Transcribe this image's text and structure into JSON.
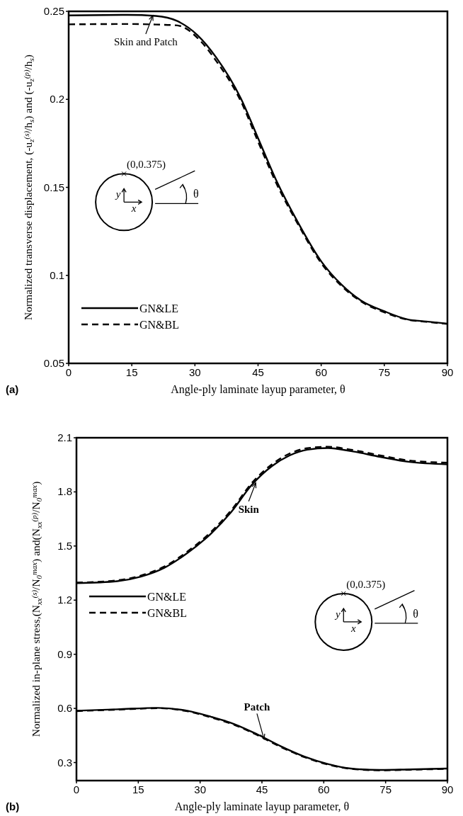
{
  "chart_data": [
    {
      "type": "line",
      "xlabel": "Angle-ply laminate layup parameter, θ",
      "ylabel": "Normalized transverse displacement, (-u$_{z}$$^{(s)}$/h$_{s}$) and (-u$_{z}$$^{(p)}$/h$_{s}$)",
      "xlim": [
        0,
        90
      ],
      "xticks": [
        0,
        15,
        30,
        45,
        60,
        75,
        90
      ],
      "ylim": [
        0.05,
        0.25
      ],
      "yticks": [
        0.05,
        0.1,
        0.15,
        0.2,
        0.25
      ],
      "grid": false,
      "legend": "bottom left",
      "series": [
        {
          "name": "GN&LE",
          "color": "#000000",
          "line_style": "solid",
          "x": [
            0,
            14,
            20.7,
            25.8,
            30.6,
            35,
            40.9,
            45,
            49.4,
            54.5,
            60,
            64.8,
            69.6,
            75,
            80.5,
            85,
            90
          ],
          "values": [
            0.2477,
            0.248,
            0.2474,
            0.2445,
            0.2365,
            0.224,
            0.2006,
            0.178,
            0.1536,
            0.13,
            0.108,
            0.0948,
            0.0855,
            0.0796,
            0.075,
            0.0738,
            0.0726
          ]
        },
        {
          "name": "GN&BL",
          "color": "#000000",
          "line_style": "dashed",
          "x": [
            0,
            14,
            20.7,
            25.8,
            31.5,
            35,
            40.9,
            45,
            49.4,
            54.5,
            60,
            64.8,
            69.6,
            75,
            80.5,
            85,
            90
          ],
          "values": [
            0.2426,
            0.2428,
            0.2425,
            0.242,
            0.2327,
            0.222,
            0.199,
            0.176,
            0.152,
            0.129,
            0.107,
            0.094,
            0.085,
            0.079,
            0.0748,
            0.0736,
            0.0724
          ]
        }
      ],
      "annotations": [
        "(a)",
        "(0,0.375)",
        "y",
        "x",
        "θ",
        {
          "text": "Skin and Patch",
          "x": 20,
          "y": 0.2476
        }
      ]
    },
    {
      "type": "line",
      "xlabel": "Angle-ply laminate layup parameter, θ",
      "ylabel": "Normalized in-plane stress,(N$_{xx}$$^{(s)}$/N$_{0}$$^{max}$) and(N$_{xx}$$^{(p)}$/N$_{0}$$^{max}$)",
      "xlim": [
        0,
        90
      ],
      "xticks": [
        0,
        15,
        30,
        45,
        60,
        75,
        90
      ],
      "ylim": [
        0.2,
        2.1
      ],
      "yticks": [
        0.3,
        0.6,
        0.9,
        1.2,
        1.5,
        1.8,
        2.1
      ],
      "grid": false,
      "legend": "left",
      "series": [
        {
          "name": "GN&LE",
          "color": "#000000",
          "line_style": "solid",
          "x": [
            0,
            9.9,
            15.6,
            21.3,
            26.9,
            32.6,
            37.6,
            42.5,
            47.5,
            51.7,
            56,
            61,
            66.6,
            73.7,
            80.8,
            90
          ],
          "values": [
            1.294,
            1.305,
            1.33,
            1.379,
            1.461,
            1.568,
            1.69,
            1.838,
            1.944,
            2.002,
            2.034,
            2.043,
            2.026,
            1.994,
            1.966,
            1.953
          ]
        },
        {
          "name": "GN&BL",
          "color": "#000000",
          "line_style": "dashed",
          "x": [
            0,
            9.9,
            15.6,
            21.3,
            26.9,
            32.6,
            37.6,
            42.5,
            47.5,
            51.7,
            56,
            61,
            66.6,
            73.7,
            80.8,
            90
          ],
          "values": [
            1.297,
            1.31,
            1.336,
            1.386,
            1.469,
            1.577,
            1.7,
            1.848,
            1.954,
            2.012,
            2.042,
            2.05,
            2.034,
            2.002,
            1.974,
            1.962
          ]
        },
        {
          "color": "#000000",
          "line_style": "solid",
          "x": [
            0,
            9.9,
            19.8,
            26.9,
            32.6,
            38.3,
            43.9,
            49.6,
            55.3,
            61,
            66.6,
            73.7,
            80.8,
            90
          ],
          "values": [
            0.587,
            0.595,
            0.603,
            0.587,
            0.554,
            0.513,
            0.456,
            0.39,
            0.333,
            0.292,
            0.267,
            0.259,
            0.262,
            0.267
          ]
        },
        {
          "color": "#000000",
          "line_style": "dashed",
          "x": [
            0,
            9.9,
            19.8,
            26.9,
            32.6,
            38.3,
            43.9,
            49.6,
            55.3,
            61,
            66.6,
            73.7,
            80.8,
            90
          ],
          "values": [
            0.585,
            0.593,
            0.601,
            0.584,
            0.55,
            0.509,
            0.452,
            0.386,
            0.33,
            0.289,
            0.265,
            0.257,
            0.26,
            0.265
          ]
        }
      ],
      "annotations": [
        "(b)",
        "(0,0.375)",
        "y",
        "x",
        "θ",
        {
          "text": "Skin",
          "x": 43.5,
          "y": 1.85
        },
        {
          "text": "Patch",
          "x": 45.5,
          "y": 0.43
        }
      ]
    }
  ]
}
